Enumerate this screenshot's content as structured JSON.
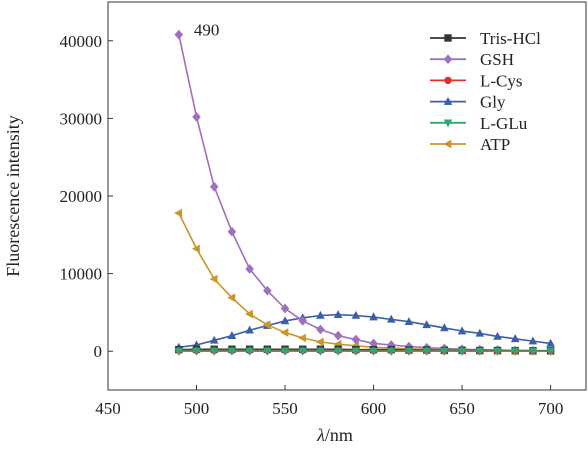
{
  "chart_data": {
    "type": "line",
    "xlabel_italic": "λ",
    "xlabel_unit": "/nm",
    "ylabel": "Fluorescence intensity",
    "xlim": [
      450,
      720
    ],
    "ylim": [
      -5000,
      45000
    ],
    "xticks": [
      450,
      500,
      550,
      600,
      650,
      700
    ],
    "yticks": [
      0,
      10000,
      20000,
      30000,
      40000
    ],
    "annotation": {
      "text": "490",
      "x": 490,
      "y": 40800
    },
    "legend_position": "top-right",
    "grid": false,
    "x": [
      490,
      500,
      510,
      520,
      530,
      540,
      550,
      560,
      570,
      580,
      590,
      600,
      610,
      620,
      630,
      640,
      650,
      660,
      670,
      680,
      690,
      700
    ],
    "series": [
      {
        "name": "Tris-HCl",
        "color": "#333333",
        "marker": "square",
        "values": [
          200,
          250,
          250,
          250,
          250,
          250,
          250,
          250,
          250,
          250,
          200,
          200,
          200,
          150,
          150,
          100,
          100,
          80,
          80,
          60,
          50,
          50
        ]
      },
      {
        "name": "GSH",
        "color": "#a070c0",
        "marker": "diamond",
        "values": [
          40800,
          30200,
          21200,
          15400,
          10600,
          7800,
          5500,
          3900,
          2800,
          2000,
          1500,
          1000,
          800,
          600,
          450,
          350,
          250,
          200,
          150,
          100,
          80,
          60
        ]
      },
      {
        "name": "L-Cys",
        "color": "#e03030",
        "marker": "circle",
        "values": [
          100,
          100,
          100,
          100,
          100,
          100,
          100,
          100,
          100,
          100,
          80,
          80,
          80,
          60,
          60,
          50,
          50,
          40,
          40,
          30,
          30,
          30
        ]
      },
      {
        "name": "Gly",
        "color": "#3a5fa8",
        "marker": "triangle-up",
        "values": [
          500,
          800,
          1400,
          2000,
          2700,
          3300,
          3900,
          4300,
          4600,
          4700,
          4600,
          4400,
          4100,
          3800,
          3400,
          3000,
          2600,
          2300,
          1900,
          1600,
          1300,
          1000
        ]
      },
      {
        "name": "L-GLu",
        "color": "#2ea870",
        "marker": "triangle-down",
        "values": [
          0,
          0,
          0,
          0,
          0,
          0,
          0,
          0,
          0,
          0,
          0,
          0,
          0,
          0,
          0,
          0,
          0,
          0,
          0,
          0,
          0,
          0
        ]
      },
      {
        "name": "ATP",
        "color": "#c8962a",
        "marker": "triangle-left",
        "values": [
          17800,
          13200,
          9300,
          6900,
          4800,
          3400,
          2400,
          1700,
          1200,
          900,
          700,
          500,
          400,
          300,
          250,
          200,
          150,
          120,
          100,
          80,
          60,
          50
        ]
      }
    ]
  }
}
